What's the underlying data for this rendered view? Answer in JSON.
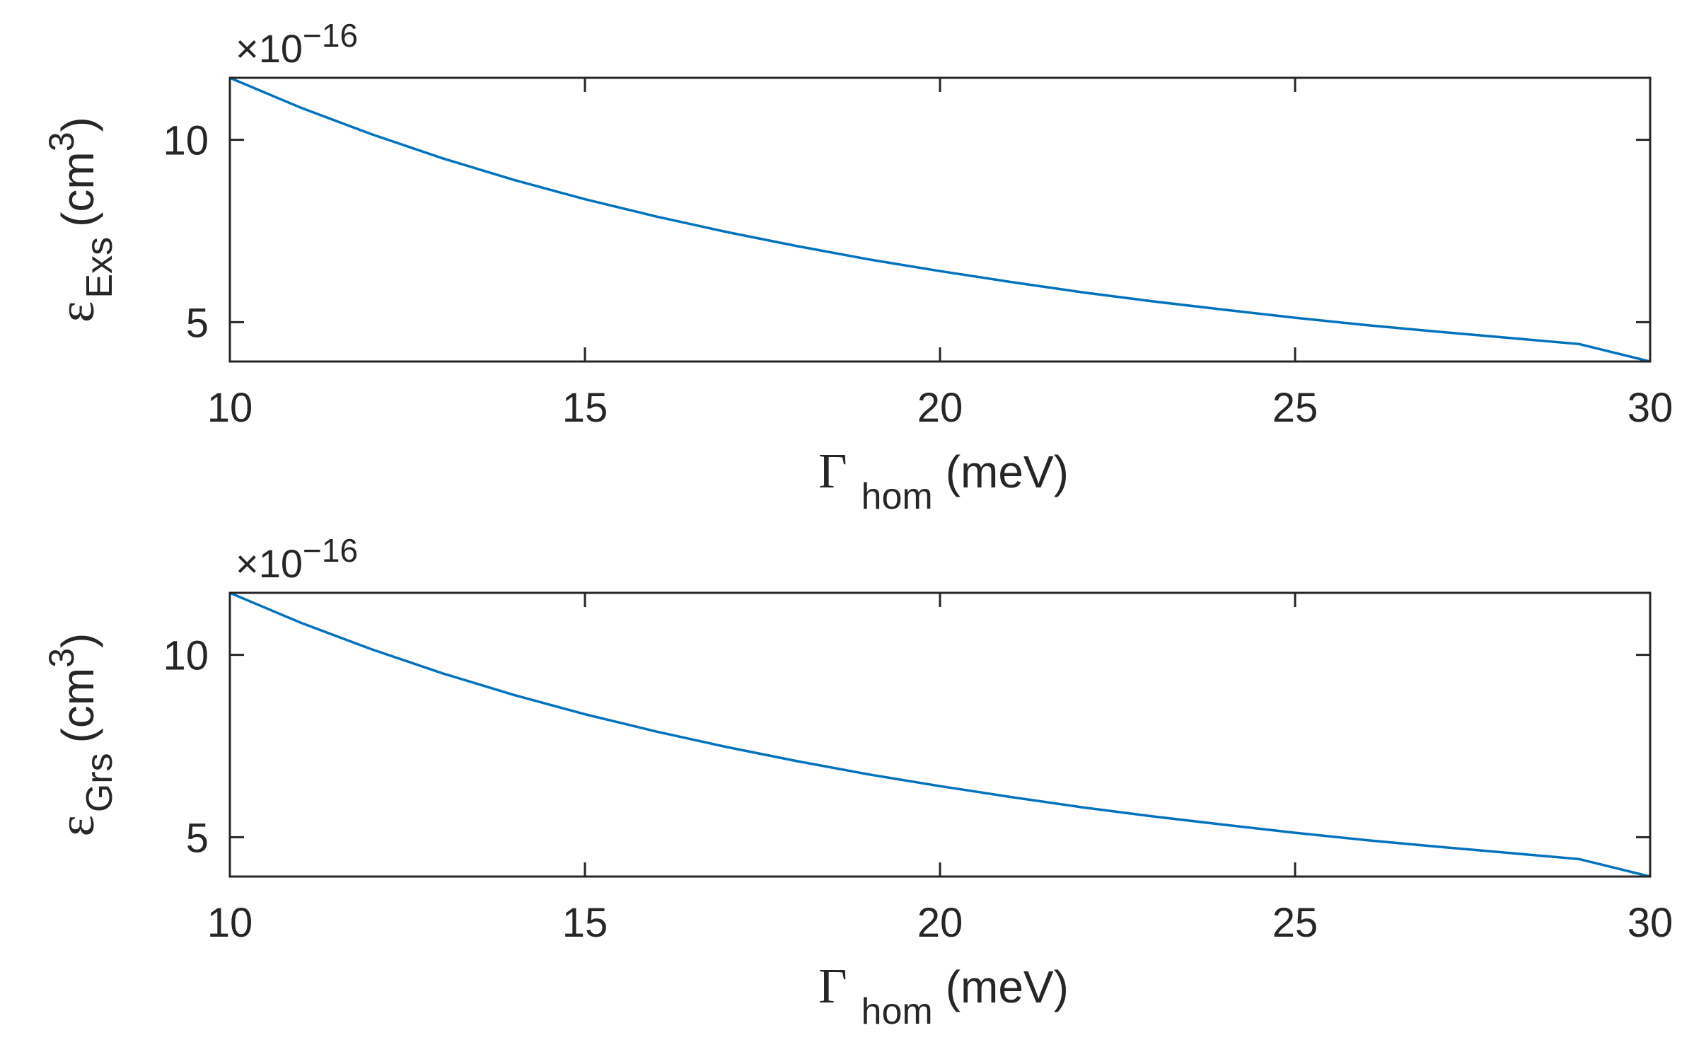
{
  "chart_data": [
    {
      "type": "line",
      "x_title": {
        "symbol": "Γ",
        "sub": "hom",
        "unit": "(meV)"
      },
      "y_title": {
        "symbol": "ε",
        "sub": "Exs",
        "unit_prefix": "(cm",
        "unit_sup": "3",
        "unit_suffix": ")"
      },
      "exponent_label": "×10",
      "exponent_power": "−16",
      "xlim": [
        10,
        30
      ],
      "ylim": [
        3.92,
        11.7
      ],
      "xticks": [
        10,
        15,
        20,
        25,
        30
      ],
      "yticks": [
        5,
        10
      ],
      "x_tick_labels": [
        "10",
        "15",
        "20",
        "25",
        "30"
      ],
      "y_tick_labels": [
        "5",
        "10"
      ],
      "grid": false,
      "line_color": "#0072BD",
      "series": [
        {
          "x": [
            10,
            11,
            12,
            13,
            14,
            15,
            16,
            17,
            18,
            19,
            20,
            21,
            22,
            23,
            24,
            25,
            26,
            27,
            28,
            29,
            30
          ],
          "values": [
            11.7,
            10.88,
            10.15,
            9.49,
            8.9,
            8.37,
            7.9,
            7.47,
            7.08,
            6.72,
            6.4,
            6.1,
            5.82,
            5.57,
            5.34,
            5.12,
            4.92,
            4.74,
            4.57,
            4.4,
            3.92
          ]
        }
      ]
    },
    {
      "type": "line",
      "x_title": {
        "symbol": "Γ",
        "sub": "hom",
        "unit": "(meV)"
      },
      "y_title": {
        "symbol": "ε",
        "sub": "Grs",
        "unit_prefix": "(cm",
        "unit_sup": "3",
        "unit_suffix": ")"
      },
      "exponent_label": "×10",
      "exponent_power": "−16",
      "xlim": [
        10,
        30
      ],
      "ylim": [
        3.92,
        11.7
      ],
      "xticks": [
        10,
        15,
        20,
        25,
        30
      ],
      "yticks": [
        5,
        10
      ],
      "x_tick_labels": [
        "10",
        "15",
        "20",
        "25",
        "30"
      ],
      "y_tick_labels": [
        "5",
        "10"
      ],
      "grid": false,
      "line_color": "#0072BD",
      "series": [
        {
          "x": [
            10,
            11,
            12,
            13,
            14,
            15,
            16,
            17,
            18,
            19,
            20,
            21,
            22,
            23,
            24,
            25,
            26,
            27,
            28,
            29,
            30
          ],
          "values": [
            11.7,
            10.88,
            10.15,
            9.49,
            8.9,
            8.37,
            7.9,
            7.47,
            7.08,
            6.72,
            6.4,
            6.1,
            5.82,
            5.57,
            5.34,
            5.12,
            4.92,
            4.74,
            4.57,
            4.4,
            3.92
          ]
        }
      ]
    }
  ]
}
